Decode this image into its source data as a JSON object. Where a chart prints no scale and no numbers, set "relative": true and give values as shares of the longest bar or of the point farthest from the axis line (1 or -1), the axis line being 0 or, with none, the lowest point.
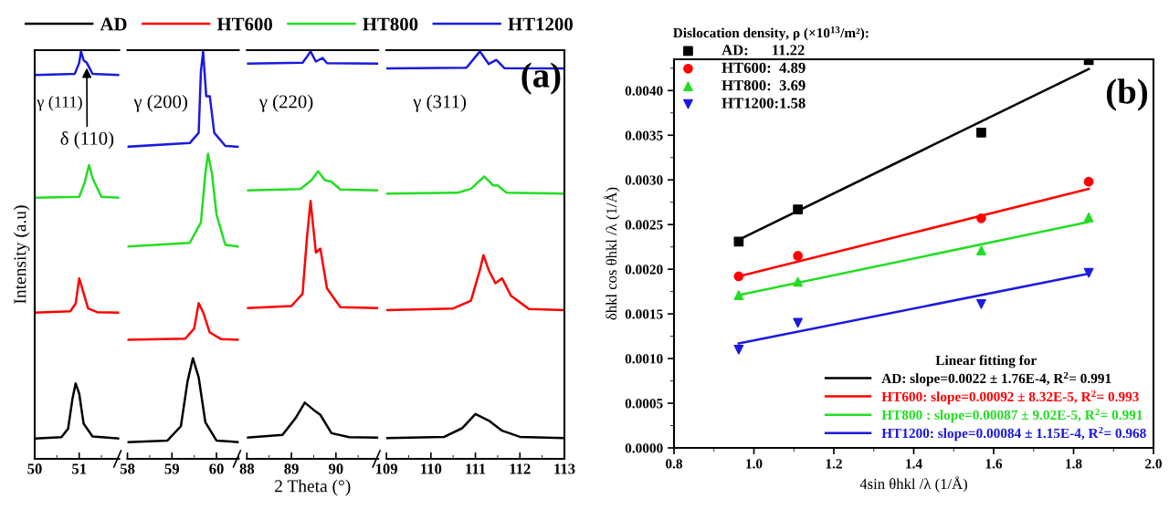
{
  "chart_data": [
    {
      "type": "line",
      "relative": true,
      "ylabel": "Intensity (a.u)",
      "legend": "top",
      "xlim": [
        50,
        51.9
      ],
      "xticks": [
        50,
        51
      ],
      "annotations": [
        "γ (111)",
        {
          "text": "δ (110)",
          "x": 51.17,
          "y": 0.972
        }
      ],
      "series": [
        {
          "name": "AD",
          "color": "#000000",
          "x": [
            50,
            50.6,
            50.75,
            50.85,
            50.92,
            51.0,
            51.1,
            51.3,
            51.9
          ],
          "values": [
            0.05,
            0.053,
            0.074,
            0.148,
            0.185,
            0.16,
            0.086,
            0.055,
            0.05
          ]
        },
        {
          "name": "HT600",
          "color": "#ff0000",
          "x": [
            50,
            50.8,
            50.92,
            51.0,
            51.1,
            51.2,
            51.4,
            51.9
          ],
          "values": [
            0.359,
            0.362,
            0.381,
            0.443,
            0.406,
            0.369,
            0.36,
            0.359
          ]
        },
        {
          "name": "HT800",
          "color": "#22dd22",
          "x": [
            50,
            51.0,
            51.12,
            51.22,
            51.3,
            51.38,
            51.5,
            51.9
          ],
          "values": [
            0.641,
            0.643,
            0.677,
            0.721,
            0.689,
            0.67,
            0.643,
            0.641
          ]
        },
        {
          "name": "HT1200",
          "color": "#1a1ae0",
          "x": [
            50,
            50.9,
            51.0,
            51.04,
            51.1,
            51.17,
            51.3,
            51.9
          ],
          "values": [
            0.942,
            0.945,
            0.972,
            1.0,
            0.978,
            0.972,
            0.945,
            0.942
          ]
        }
      ]
    },
    {
      "type": "line",
      "relative": true,
      "xlim": [
        58,
        60.5
      ],
      "xticks": [
        58,
        59,
        60
      ],
      "annotations": [
        "γ (200)"
      ],
      "series": [
        {
          "color": "#000000",
          "x": [
            58,
            58.9,
            59.2,
            59.35,
            59.47,
            59.6,
            59.75,
            60.0,
            60.5
          ],
          "values": [
            0.041,
            0.045,
            0.08,
            0.19,
            0.247,
            0.2,
            0.09,
            0.045,
            0.041
          ]
        },
        {
          "color": "#ff0000",
          "x": [
            58,
            59.3,
            59.5,
            59.6,
            59.7,
            59.85,
            60.1,
            60.5
          ],
          "values": [
            0.292,
            0.295,
            0.32,
            0.382,
            0.36,
            0.31,
            0.294,
            0.292
          ]
        },
        {
          "color": "#22dd22",
          "x": [
            58,
            59.4,
            59.65,
            59.75,
            59.81,
            59.9,
            60.0,
            60.2,
            60.5
          ],
          "values": [
            0.521,
            0.53,
            0.58,
            0.7,
            0.749,
            0.7,
            0.6,
            0.525,
            0.521
          ]
        },
        {
          "color": "#1a1ae0",
          "x": [
            58,
            59.4,
            59.6,
            59.65,
            59.7,
            59.77,
            59.85,
            59.95,
            60.2,
            60.5
          ],
          "values": [
            0.766,
            0.775,
            0.8,
            0.95,
            1.0,
            0.89,
            0.89,
            0.8,
            0.768,
            0.766
          ]
        }
      ]
    },
    {
      "type": "line",
      "relative": true,
      "xlabel": "2 Theta (°)",
      "xlim": [
        88,
        90.95
      ],
      "xticks": [
        88,
        89,
        90
      ],
      "annotations": [
        "γ (220)"
      ],
      "series": [
        {
          "color": "#000000",
          "x": [
            88,
            88.8,
            89.1,
            89.3,
            89.5,
            89.65,
            89.9,
            90.3,
            90.95
          ],
          "values": [
            0.052,
            0.059,
            0.101,
            0.138,
            0.12,
            0.108,
            0.063,
            0.053,
            0.052
          ]
        },
        {
          "color": "#ff0000",
          "x": [
            88,
            89.0,
            89.25,
            89.35,
            89.43,
            89.55,
            89.65,
            89.8,
            90.1,
            90.95
          ],
          "values": [
            0.37,
            0.375,
            0.405,
            0.544,
            0.633,
            0.506,
            0.516,
            0.418,
            0.372,
            0.37
          ]
        },
        {
          "color": "#22dd22",
          "x": [
            88,
            89.2,
            89.45,
            89.6,
            89.75,
            89.9,
            90.1,
            90.95
          ],
          "values": [
            0.659,
            0.662,
            0.684,
            0.706,
            0.684,
            0.68,
            0.661,
            0.659
          ]
        },
        {
          "color": "#1a1ae0",
          "x": [
            88,
            89.25,
            89.35,
            89.43,
            89.55,
            89.7,
            89.8,
            90.95
          ],
          "values": [
            0.97,
            0.972,
            0.987,
            1.0,
            0.975,
            0.984,
            0.971,
            0.97
          ]
        }
      ]
    },
    {
      "type": "line",
      "relative": true,
      "xlim": [
        109,
        113
      ],
      "xticks": [
        109,
        110,
        111,
        112,
        113
      ],
      "annotations": [
        "γ (311)",
        "(a)"
      ],
      "series": [
        {
          "color": "#000000",
          "x": [
            109,
            110.3,
            110.7,
            111.0,
            111.3,
            111.6,
            112.0,
            113
          ],
          "values": [
            0.051,
            0.054,
            0.075,
            0.11,
            0.094,
            0.069,
            0.054,
            0.051
          ]
        },
        {
          "color": "#ff0000",
          "x": [
            109,
            110.5,
            110.9,
            111.1,
            111.18,
            111.3,
            111.45,
            111.6,
            111.8,
            112.2,
            113
          ],
          "values": [
            0.365,
            0.369,
            0.388,
            0.463,
            0.5,
            0.463,
            0.431,
            0.443,
            0.4,
            0.368,
            0.365
          ]
        },
        {
          "color": "#22dd22",
          "x": [
            109,
            110.6,
            110.9,
            111.2,
            111.4,
            111.5,
            111.7,
            113
          ],
          "values": [
            0.651,
            0.653,
            0.663,
            0.693,
            0.671,
            0.671,
            0.653,
            0.651
          ]
        },
        {
          "color": "#1a1ae0",
          "x": [
            109,
            110.8,
            111.1,
            111.3,
            111.47,
            111.65,
            113
          ],
          "values": [
            0.958,
            0.96,
            1.0,
            0.969,
            0.979,
            0.959,
            0.958
          ]
        }
      ]
    },
    {
      "type": "scatter",
      "xlabel": "4sin θhkl /λ (1/Å)",
      "ylabel": "δhkl cos θhkl /λ (1/Å)",
      "legend": "top left",
      "legend_title": "Dislocation density, ρ (×10$^{13}$/m²):",
      "xlim": [
        0.8,
        2.0
      ],
      "xticks": [
        0.8,
        {
          "value": 1.0,
          "label": "1.0"
        },
        1.2,
        1.4,
        1.6,
        1.8,
        {
          "value": 2.0,
          "label": "2.0"
        }
      ],
      "ylim": [
        0,
        0.00435
      ],
      "yticks": [
        {
          "value": 0,
          "label": "0.0000"
        },
        {
          "value": 0.0005,
          "label": "0.0005"
        },
        {
          "value": 0.001,
          "label": "0.0010"
        },
        {
          "value": 0.0015,
          "label": "0.0015"
        },
        {
          "value": 0.002,
          "label": "0.0020"
        },
        {
          "value": 0.0025,
          "label": "0.0025"
        },
        {
          "value": 0.003,
          "label": "0.0030"
        },
        {
          "value": 0.0035,
          "label": "0.0035"
        },
        {
          "value": 0.004,
          "label": "0.0040"
        }
      ],
      "x": [
        0.962,
        1.11,
        1.569,
        1.838
      ],
      "annotations": [
        "Linear fitting for",
        "(b)"
      ],
      "series": [
        {
          "name": "AD:      11.22",
          "color": "#000000",
          "marker": "square",
          "values": [
            0.00231,
            0.00267,
            0.00353,
            0.00434
          ]
        },
        {
          "name": "HT600:  4.89",
          "color": "#ff0000",
          "marker": "circle",
          "values": [
            0.00192,
            0.00215,
            0.00257,
            0.00298
          ]
        },
        {
          "name": "HT800:  3.69",
          "color": "#22dd22",
          "marker": "triangle",
          "values": [
            0.00171,
            0.00186,
            0.00221,
            0.00258
          ]
        },
        {
          "name": "HT1200:1.58",
          "color": "#1a1ae0",
          "marker": "triangle_down",
          "values": [
            0.0011,
            0.0014,
            0.00161,
            0.00196
          ]
        },
        {
          "type": "line",
          "name": "AD: slope=0.0022 ± 1.76E-4, R$^{2}$= 0.991",
          "color": "#000000",
          "x": [
            0.962,
            1.838
          ],
          "values": [
            0.00233,
            0.00424
          ]
        },
        {
          "type": "line",
          "name": "HT600: slope=0.00092 ± 8.32E-5, R$^{2}$= 0.993",
          "color": "#ff0000",
          "x": [
            0.962,
            1.838
          ],
          "values": [
            0.00192,
            0.0029
          ]
        },
        {
          "type": "line",
          "name": "HT800 : slope=0.00087 ± 9.02E-5, R$^{2}$= 0.991",
          "color": "#22dd22",
          "x": [
            0.962,
            1.838
          ],
          "values": [
            0.00171,
            0.00253
          ]
        },
        {
          "type": "line",
          "name": "HT1200: slope=0.00084 ± 1.15E-4, R$^{2}$= 0.968",
          "color": "#1a1ae0",
          "x": [
            0.962,
            1.838
          ],
          "values": [
            0.00117,
            0.00195
          ]
        }
      ]
    }
  ]
}
